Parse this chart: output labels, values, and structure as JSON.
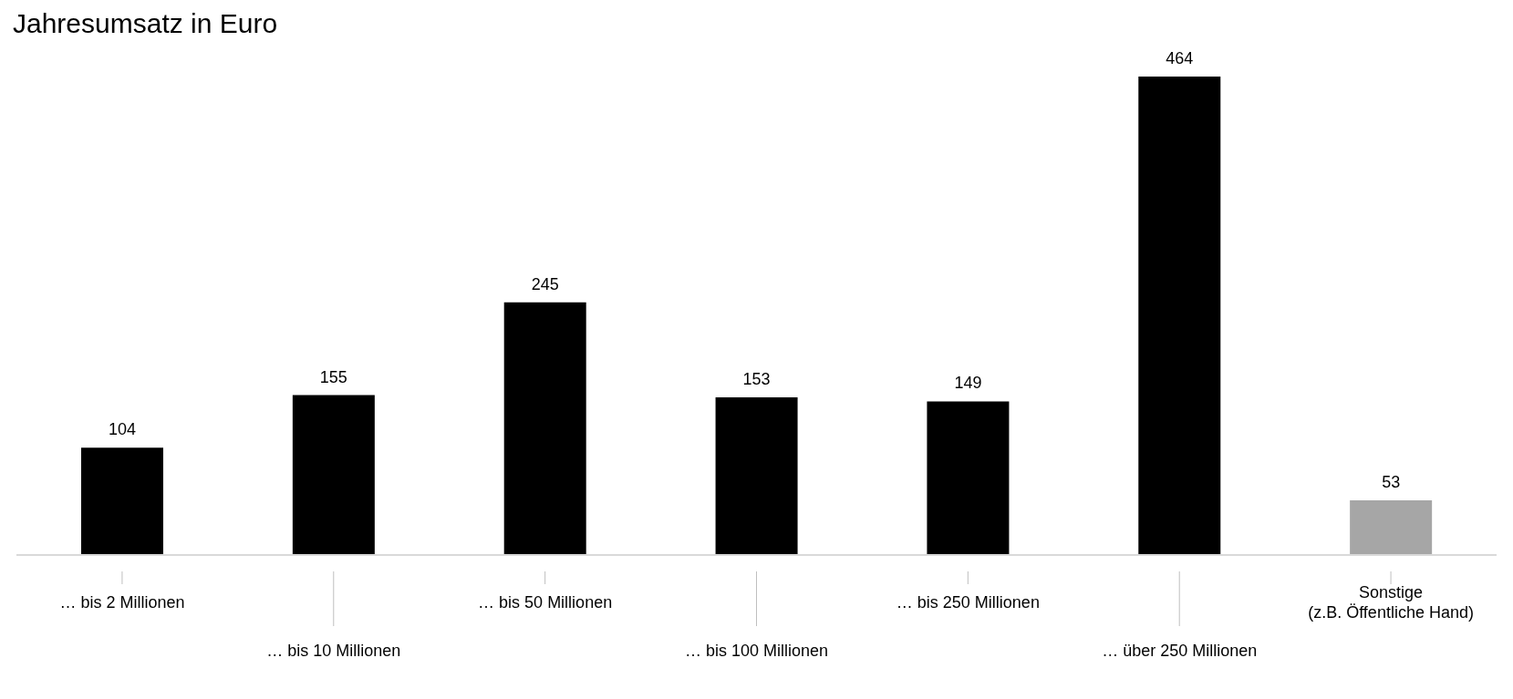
{
  "chart_data": {
    "type": "bar",
    "title": "Jahresumsatz in Euro",
    "categories": [
      "… bis 2 Millionen",
      "… bis 10 Millionen",
      "… bis 50 Millionen",
      "… bis 100 Millionen",
      "… bis 250 Millionen",
      "… über 250 Millionen",
      "Sonstige\n(z.B. Öffentliche Hand)"
    ],
    "values": [
      104,
      155,
      245,
      153,
      149,
      464,
      53
    ],
    "colors": [
      "#000000",
      "#000000",
      "#000000",
      "#000000",
      "#000000",
      "#000000",
      "#a6a6a6"
    ],
    "data_labels": true,
    "grid": false,
    "legend": false
  }
}
